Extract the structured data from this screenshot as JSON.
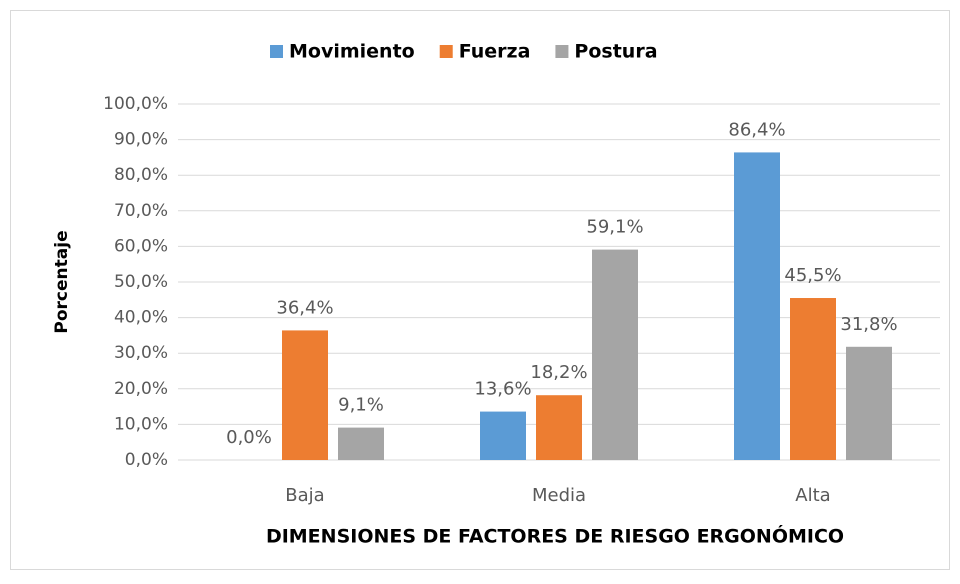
{
  "chart_data": {
    "type": "bar",
    "categories": [
      "Baja",
      "Media",
      "Alta"
    ],
    "series": [
      {
        "name": "Movimiento",
        "color": "#5b9bd5",
        "values": [
          0,
          13.6,
          86.4
        ],
        "value_labels": [
          "0,0%",
          "13,6%",
          "86,4%"
        ]
      },
      {
        "name": "Fuerza",
        "color": "#ed7d31",
        "values": [
          36.4,
          18.2,
          45.5
        ],
        "value_labels": [
          "36,4%",
          "18,2%",
          "45,5%"
        ]
      },
      {
        "name": "Postura",
        "color": "#a5a5a5",
        "values": [
          9.1,
          59.1,
          31.8
        ],
        "value_labels": [
          "9,1%",
          "59,1%",
          "31,8%"
        ]
      }
    ],
    "ylim": [
      0,
      100
    ],
    "yticks": [
      {
        "value": 0,
        "label": "0,0%"
      },
      {
        "value": 10,
        "label": "10,0%"
      },
      {
        "value": 20,
        "label": "20,0%"
      },
      {
        "value": 30,
        "label": "30,0%"
      },
      {
        "value": 40,
        "label": "40,0%"
      },
      {
        "value": 50,
        "label": "50,0%"
      },
      {
        "value": 60,
        "label": "60,0%"
      },
      {
        "value": 70,
        "label": "70,0%"
      },
      {
        "value": 80,
        "label": "80,0%"
      },
      {
        "value": 90,
        "label": "90,0%"
      },
      {
        "value": 100,
        "label": "100,0%"
      }
    ],
    "y_label": "Porcentaje",
    "x_label": "DIMENSIONES DE FACTORES DE RIESGO ERGONÓMICO",
    "grid": true,
    "legend": "top"
  }
}
